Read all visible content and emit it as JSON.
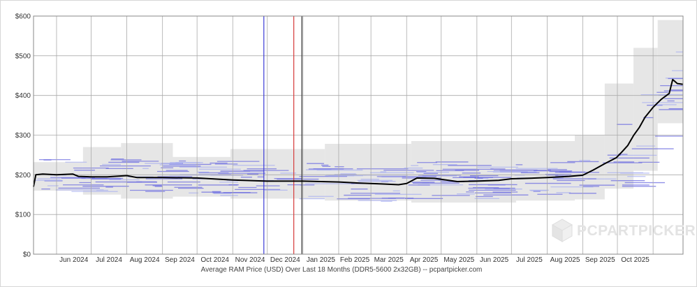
{
  "chart_data": {
    "type": "line",
    "caption": "Average RAM Price (USD) Over Last 18 Months (DDR5-5600 2x32GB) -- pcpartpicker.com",
    "watermark": "PCPARTPICKER",
    "y_ticks": [
      "$0",
      "$100",
      "$200",
      "$300",
      "$400",
      "$500",
      "$600"
    ],
    "ylim": [
      0,
      600
    ],
    "x_ticks": [
      "Jun 2024",
      "Jul 2024",
      "Aug 2024",
      "Sep 2024",
      "Oct 2024",
      "Nov 2024",
      "Dec 2024",
      "Jan 2025",
      "Feb 2025",
      "Mar 2025",
      "Apr 2025",
      "May 2025",
      "Jun 2025",
      "Jul 2025",
      "Aug 2025",
      "Sep 2025",
      "Oct 2025"
    ],
    "xlim": [
      "2024-05-12",
      "2025-11-27"
    ],
    "grid": true,
    "markers": [
      {
        "date": "2024-11-28",
        "color": "#3b3bd6"
      },
      {
        "date": "2024-12-24",
        "color": "#d63b3b"
      },
      {
        "date": "2024-12-31",
        "color": "#333333"
      }
    ],
    "series": [
      {
        "color": "#000000",
        "x": [
          "2024-05-12",
          "2024-05-14",
          "2024-05-20",
          "2024-06-01",
          "2024-06-15",
          "2024-06-20",
          "2024-07-01",
          "2024-07-15",
          "2024-08-01",
          "2024-08-10",
          "2024-09-01",
          "2024-10-01",
          "2024-11-01",
          "2024-12-01",
          "2025-01-01",
          "2025-02-01",
          "2025-02-20",
          "2025-03-10",
          "2025-03-25",
          "2025-04-01",
          "2025-04-10",
          "2025-04-25",
          "2025-05-15",
          "2025-06-01",
          "2025-06-20",
          "2025-07-01",
          "2025-07-15",
          "2025-08-01",
          "2025-08-20",
          "2025-09-01",
          "2025-09-10",
          "2025-09-20",
          "2025-09-30",
          "2025-10-05",
          "2025-10-10",
          "2025-10-15",
          "2025-10-20",
          "2025-10-25",
          "2025-11-01",
          "2025-11-08",
          "2025-11-15",
          "2025-11-18",
          "2025-11-22",
          "2025-11-27"
        ],
        "y": [
          170,
          200,
          202,
          200,
          202,
          196,
          195,
          195,
          198,
          193,
          193,
          192,
          187,
          184,
          184,
          182,
          179,
          177,
          175,
          178,
          192,
          191,
          183,
          184,
          186,
          190,
          191,
          193,
          196,
          199,
          212,
          228,
          243,
          258,
          274,
          299,
          319,
          345,
          370,
          390,
          405,
          440,
          430,
          428
        ]
      }
    ],
    "range_bands": [
      {
        "start": "2024-05-12",
        "end": "2024-06-24",
        "low": 160,
        "high": 232
      },
      {
        "start": "2024-06-24",
        "end": "2024-07-27",
        "low": 150,
        "high": 270
      },
      {
        "start": "2024-07-27",
        "end": "2024-09-10",
        "low": 140,
        "high": 280
      },
      {
        "start": "2024-09-10",
        "end": "2024-10-30",
        "low": 145,
        "high": 245
      },
      {
        "start": "2024-10-30",
        "end": "2025-01-20",
        "low": 140,
        "high": 265
      },
      {
        "start": "2025-01-20",
        "end": "2025-04-05",
        "low": 135,
        "high": 278
      },
      {
        "start": "2025-04-05",
        "end": "2025-07-05",
        "low": 130,
        "high": 285
      },
      {
        "start": "2025-07-05",
        "end": "2025-08-25",
        "low": 135,
        "high": 285
      },
      {
        "start": "2025-08-25",
        "end": "2025-09-20",
        "low": 138,
        "high": 300
      },
      {
        "start": "2025-09-20",
        "end": "2025-10-15",
        "low": 165,
        "high": 430
      },
      {
        "start": "2025-10-15",
        "end": "2025-11-05",
        "low": 210,
        "high": 520
      },
      {
        "start": "2025-11-05",
        "end": "2025-11-27",
        "low": 330,
        "high": 590
      }
    ]
  }
}
